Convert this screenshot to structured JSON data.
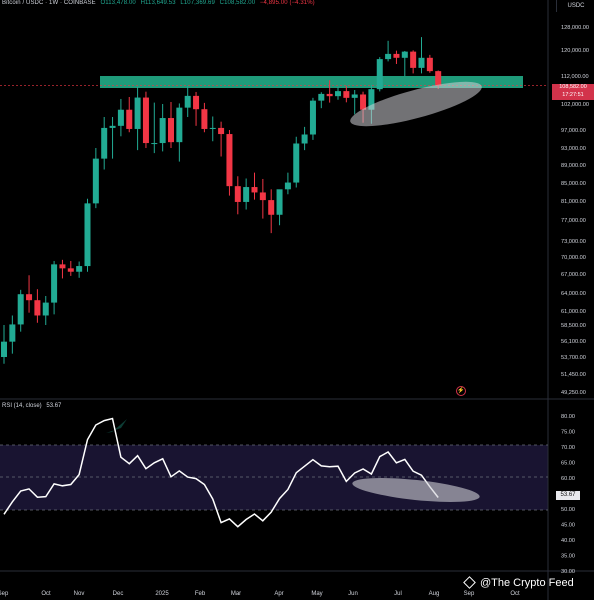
{
  "header": {
    "symbol": "Bitcoin / USDC · 1W · COINBASE",
    "open": "O113,478.00",
    "high": "H113,649.53",
    "low": "L107,369.69",
    "close": "C108,582.00",
    "change": "−4,895.00 (−4.31%)"
  },
  "currency_label": "USDC",
  "last_price": {
    "value": "108,582.00",
    "countdown": "17:27:51"
  },
  "rsi_header": {
    "label": "RSI (14, close)",
    "value": "53.67"
  },
  "rsi_last_label": "53.67",
  "alert_icon_name": "alert-icon",
  "watermark": {
    "icon": "binance-diamond-icon",
    "text": "@The Crypto Feed"
  },
  "colors": {
    "up": "#22ab94",
    "down": "#f23645",
    "zone": "#1f9b7a",
    "rsi_line": "#ffffff",
    "highlight": "#cfcfd6",
    "background": "#000000"
  },
  "chart_data": [
    {
      "type": "candlestick",
      "title": "Bitcoin / USDC · 1W · COINBASE",
      "price_axis_labels": [
        "128,000.00",
        "120,000.00",
        "112,000.00",
        "102,000.00",
        "97,000.00",
        "93,000.00",
        "89,000.00",
        "85,000.00",
        "81,000.00",
        "77,000.00",
        "73,000.00",
        "70,000.00",
        "67,000.00",
        "64,000.00",
        "61,000.00",
        "58,500.00",
        "56,100.00",
        "53,700.00",
        "51,450.00",
        "49,250.00"
      ],
      "price_axis_values": [
        128000,
        120000,
        112000,
        102000,
        97000,
        93000,
        89000,
        85000,
        81000,
        77000,
        73000,
        70000,
        67000,
        64000,
        61000,
        58500,
        56100,
        53700,
        51450,
        49250
      ],
      "time_axis_labels": [
        "Sep",
        "Oct",
        "Nov",
        "Dec",
        "2025",
        "Feb",
        "Mar",
        "Apr",
        "May",
        "Jun",
        "Jul",
        "Aug",
        "Sep",
        "Oct"
      ],
      "candles": [
        {
          "o": 53700,
          "h": 58500,
          "l": 52800,
          "c": 56000
        },
        {
          "o": 56000,
          "h": 60200,
          "l": 54200,
          "c": 58600
        },
        {
          "o": 58600,
          "h": 64500,
          "l": 57500,
          "c": 63800
        },
        {
          "o": 63800,
          "h": 66800,
          "l": 60700,
          "c": 62800
        },
        {
          "o": 62800,
          "h": 64600,
          "l": 58900,
          "c": 60200
        },
        {
          "o": 60200,
          "h": 63500,
          "l": 58500,
          "c": 62400
        },
        {
          "o": 62400,
          "h": 69300,
          "l": 60400,
          "c": 68700
        },
        {
          "o": 68700,
          "h": 69500,
          "l": 66300,
          "c": 68000
        },
        {
          "o": 68000,
          "h": 69300,
          "l": 66700,
          "c": 67400
        },
        {
          "o": 67400,
          "h": 69200,
          "l": 66400,
          "c": 68400
        },
        {
          "o": 68400,
          "h": 81500,
          "l": 67400,
          "c": 80500
        },
        {
          "o": 80500,
          "h": 93000,
          "l": 79500,
          "c": 90500
        },
        {
          "o": 90500,
          "h": 99500,
          "l": 88000,
          "c": 97400
        },
        {
          "o": 97400,
          "h": 99500,
          "l": 90500,
          "c": 97800
        },
        {
          "o": 97800,
          "h": 103800,
          "l": 95600,
          "c": 100900
        },
        {
          "o": 100900,
          "h": 104500,
          "l": 96500,
          "c": 97200
        },
        {
          "o": 97200,
          "h": 108200,
          "l": 92500,
          "c": 104300
        },
        {
          "o": 104300,
          "h": 106400,
          "l": 93000,
          "c": 94100
        },
        {
          "o": 94100,
          "h": 102500,
          "l": 91800,
          "c": 94100
        },
        {
          "o": 94100,
          "h": 102000,
          "l": 92200,
          "c": 99300
        },
        {
          "o": 99300,
          "h": 102700,
          "l": 93000,
          "c": 94300
        },
        {
          "o": 94300,
          "h": 102200,
          "l": 89800,
          "c": 101300
        },
        {
          "o": 101300,
          "h": 108300,
          "l": 99500,
          "c": 104900
        },
        {
          "o": 104900,
          "h": 106300,
          "l": 97800,
          "c": 101000
        },
        {
          "o": 101000,
          "h": 102400,
          "l": 96500,
          "c": 97200
        },
        {
          "o": 97200,
          "h": 99600,
          "l": 94500,
          "c": 97400
        },
        {
          "o": 97400,
          "h": 98600,
          "l": 91000,
          "c": 96100
        },
        {
          "o": 96100,
          "h": 97000,
          "l": 82200,
          "c": 84300
        },
        {
          "o": 84300,
          "h": 86500,
          "l": 78200,
          "c": 80800
        },
        {
          "o": 80800,
          "h": 86000,
          "l": 79200,
          "c": 84100
        },
        {
          "o": 84100,
          "h": 87300,
          "l": 81300,
          "c": 82900
        },
        {
          "o": 82900,
          "h": 85900,
          "l": 77300,
          "c": 81200
        },
        {
          "o": 81200,
          "h": 83600,
          "l": 74500,
          "c": 78100
        },
        {
          "o": 78100,
          "h": 83500,
          "l": 76000,
          "c": 83600
        },
        {
          "o": 83600,
          "h": 87300,
          "l": 82500,
          "c": 85100
        },
        {
          "o": 85100,
          "h": 95500,
          "l": 84000,
          "c": 94000
        },
        {
          "o": 94000,
          "h": 97600,
          "l": 92500,
          "c": 96000
        },
        {
          "o": 96000,
          "h": 104200,
          "l": 94800,
          "c": 103200
        },
        {
          "o": 103200,
          "h": 106200,
          "l": 101200,
          "c": 105600
        },
        {
          "o": 105600,
          "h": 110500,
          "l": 102500,
          "c": 104800
        },
        {
          "o": 104800,
          "h": 108100,
          "l": 103500,
          "c": 106600
        },
        {
          "o": 106600,
          "h": 108500,
          "l": 102600,
          "c": 104200
        },
        {
          "o": 104200,
          "h": 107000,
          "l": 100000,
          "c": 105400
        },
        {
          "o": 105400,
          "h": 106400,
          "l": 98400,
          "c": 100900
        },
        {
          "o": 100900,
          "h": 108800,
          "l": 98200,
          "c": 107300
        },
        {
          "o": 107300,
          "h": 117800,
          "l": 106500,
          "c": 117200
        },
        {
          "o": 117200,
          "h": 123200,
          "l": 116500,
          "c": 118800
        },
        {
          "o": 118800,
          "h": 119800,
          "l": 115700,
          "c": 117600
        },
        {
          "o": 117600,
          "h": 119700,
          "l": 111900,
          "c": 119500
        },
        {
          "o": 119500,
          "h": 119900,
          "l": 112800,
          "c": 114500
        },
        {
          "o": 114500,
          "h": 124500,
          "l": 112800,
          "c": 117600
        },
        {
          "o": 117600,
          "h": 118500,
          "l": 113000,
          "c": 113500
        },
        {
          "o": 113500,
          "h": 113700,
          "l": 107400,
          "c": 108600
        }
      ]
    },
    {
      "type": "line",
      "title": "RSI (14, close)",
      "rsi_axis_labels": [
        "80.00",
        "75.00",
        "70.00",
        "65.00",
        "60.00",
        "55.00",
        "50.00",
        "45.00",
        "40.00",
        "35.00",
        "30.00"
      ],
      "rsi_axis_values": [
        80,
        75,
        70,
        65,
        60,
        55,
        50,
        45,
        40,
        35,
        30
      ],
      "ylim": [
        30,
        80
      ],
      "series": [
        {
          "values": [
            48.3,
            52.3,
            55.8,
            56.5,
            53.8,
            54.0,
            58.1,
            57.5,
            57.9,
            61.1,
            72.4,
            77.1,
            78.5,
            79.2,
            66.7,
            64.6,
            67.2,
            63.0,
            64.9,
            66.2,
            60.4,
            62.3,
            60.3,
            59.8,
            57.9,
            53.2,
            45.6,
            46.8,
            44.3,
            46.6,
            48.4,
            46.2,
            49.0,
            53.4,
            56.3,
            61.7,
            63.8,
            65.9,
            63.9,
            63.6,
            63.8,
            58.9,
            61.6,
            62.9,
            61.3,
            66.9,
            68.4,
            64.9,
            66.0,
            62.2,
            60.9,
            57.2,
            53.7
          ]
        }
      ]
    }
  ]
}
